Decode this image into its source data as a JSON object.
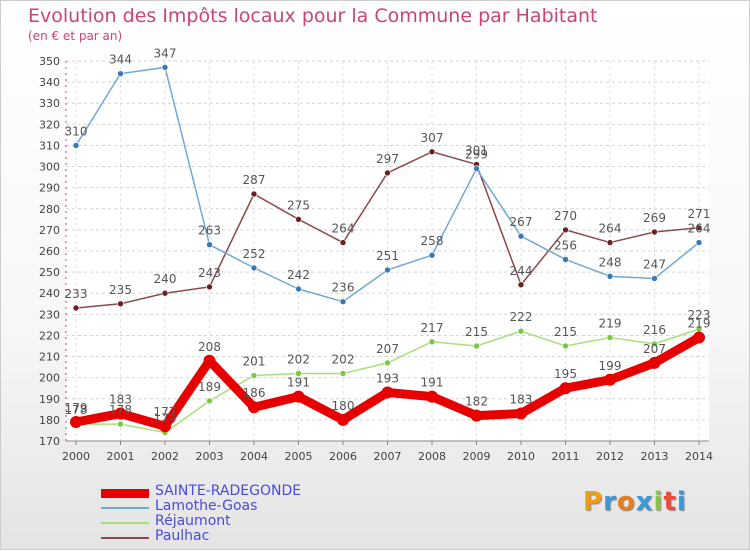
{
  "title": "Evolution des Impôts locaux pour la Commune par Habitant",
  "subtitle": "(en € et par an)",
  "brand": {
    "letters": [
      "P",
      "r",
      "o",
      "x",
      "i",
      "t",
      "i"
    ],
    "colors": [
      "#f39c12",
      "#3a9ad9",
      "#e67e22",
      "#3a9ad9",
      "#8bc34a",
      "#e74c3c",
      "#3a9ad9"
    ]
  },
  "chart_data": {
    "type": "line",
    "title": "Evolution des Impôts locaux pour la Commune par Habitant",
    "subtitle": "(en € et par an)",
    "xlabel": "",
    "ylabel": "",
    "ylim": [
      170,
      350
    ],
    "yticks": [
      170,
      180,
      190,
      200,
      210,
      220,
      230,
      240,
      250,
      260,
      270,
      280,
      290,
      300,
      310,
      320,
      330,
      340,
      350
    ],
    "x": [
      2000,
      2001,
      2002,
      2003,
      2004,
      2005,
      2006,
      2007,
      2008,
      2009,
      2010,
      2011,
      2012,
      2013,
      2014
    ],
    "grid": true,
    "legend_position": "bottom-left",
    "series": [
      {
        "name": "SAINTE-RADEGONDE",
        "color": "#e60000",
        "marker": "#e60000",
        "width": 9,
        "emphasis": true,
        "values": [
          179,
          183,
          177,
          208,
          186,
          191,
          180,
          193,
          191,
          182,
          183,
          195,
          199,
          207,
          219
        ]
      },
      {
        "name": "Lamothe-Goas",
        "color": "#6fa8d6",
        "marker": "#3a78b5",
        "width": 1.5,
        "values": [
          310,
          344,
          347,
          263,
          252,
          242,
          236,
          251,
          258,
          299,
          267,
          256,
          248,
          247,
          264
        ]
      },
      {
        "name": "Réjaumont",
        "color": "#a6e07a",
        "marker": "#7cc744",
        "width": 1.5,
        "values": [
          178,
          178,
          174,
          189,
          201,
          202,
          202,
          207,
          217,
          215,
          222,
          215,
          219,
          216,
          223
        ]
      },
      {
        "name": "Paulhac",
        "color": "#8b4a4a",
        "marker": "#6b2020",
        "width": 1.5,
        "values": [
          233,
          235,
          240,
          243,
          287,
          275,
          264,
          297,
          307,
          301,
          244,
          270,
          264,
          269,
          271
        ]
      }
    ]
  }
}
